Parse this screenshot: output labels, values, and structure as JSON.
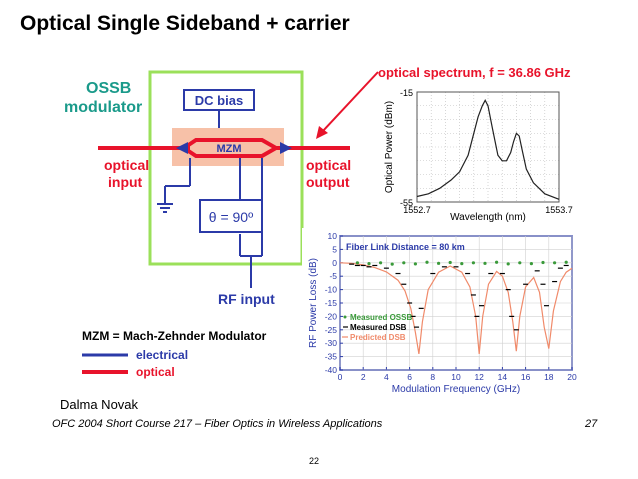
{
  "slide": {
    "title": "Optical Single Sideband + carrier",
    "author": "Dalma Novak",
    "footer": "OFC 2004 Short Course 217 – Fiber Optics in Wireless Applications",
    "footer_page": "27",
    "page_number": "22"
  },
  "diagram": {
    "ossb_line1": "OSSB",
    "ossb_line2": "modulator",
    "dc_bias": "DC bias",
    "mzm": "MZM",
    "phase": "θ = 90º",
    "optical_input_1": "optical",
    "optical_input_2": "input",
    "optical_output_1": "optical",
    "optical_output_2": "output",
    "rf_input": "RF input",
    "spectrum_caption": "optical spectrum, f = 36.86 GHz"
  },
  "legend": {
    "mzm_def": "MZM = Mach-Zehnder Modulator",
    "electrical": "electrical",
    "optical": "optical"
  },
  "colors": {
    "red": "#e8132b",
    "blue": "#2b3aa8",
    "green_box": "#9be05a",
    "mzm_fill": "#f7c1a8",
    "predicted": "#f08a6a",
    "measured_ossb": "#3a9a3a"
  },
  "chart_data": [
    {
      "type": "line",
      "ylabel": "Optical Power (dBm)",
      "xlabel": "Wavelength (nm)",
      "xticks": [
        "1552.7",
        "1553.7"
      ],
      "yticks": [
        "-15",
        "-55"
      ],
      "xlim": [
        1552.7,
        1553.7
      ],
      "ylim": [
        -55,
        -15
      ],
      "x": [
        1552.7,
        1552.78,
        1552.86,
        1552.94,
        1553.0,
        1553.06,
        1553.1,
        1553.13,
        1553.16,
        1553.18,
        1553.2,
        1553.23,
        1553.27,
        1553.3,
        1553.33,
        1553.36,
        1553.38,
        1553.4,
        1553.42,
        1553.44,
        1553.47,
        1553.52,
        1553.6,
        1553.7
      ],
      "y": [
        -53,
        -52,
        -50,
        -47,
        -44,
        -38,
        -30,
        -24,
        -20,
        -18,
        -20,
        -28,
        -38,
        -40,
        -40,
        -37,
        -33,
        -30,
        -31,
        -36,
        -43,
        -48,
        -52,
        -54
      ]
    },
    {
      "type": "scatter",
      "annotation": "Fiber Link Distance = 80 km",
      "ylabel": "RF Power Loss (dB)",
      "xlabel": "Modulation Frequency (GHz)",
      "xlim": [
        0,
        20
      ],
      "ylim": [
        -40,
        10
      ],
      "xticks": [
        "0",
        "2",
        "4",
        "6",
        "8",
        "10",
        "12",
        "14",
        "16",
        "18",
        "20"
      ],
      "yticks": [
        "10",
        "5",
        "0",
        "-5",
        "-10",
        "-15",
        "-20",
        "-25",
        "-30",
        "-35",
        "-40"
      ],
      "legend_position": "bottom-left",
      "series": [
        {
          "name": "Measured OSSB",
          "x": [
            1.5,
            2.5,
            3.5,
            4.5,
            5.5,
            6.5,
            7.5,
            8.5,
            9.5,
            10.5,
            11.5,
            12.5,
            13.5,
            14.5,
            15.5,
            16.5,
            17.5,
            18.5,
            19.5
          ],
          "values": [
            0,
            -0.3,
            0,
            -0.5,
            0,
            -0.4,
            0.2,
            -0.2,
            0.1,
            -0.3,
            0,
            -0.2,
            0.2,
            -0.4,
            0,
            -0.3,
            0.1,
            0,
            0.2
          ]
        },
        {
          "name": "Measured DSB",
          "x": [
            1,
            1.5,
            2,
            2.5,
            3,
            4,
            5,
            5.5,
            6,
            6.3,
            6.6,
            7,
            8,
            9,
            10,
            11,
            11.5,
            11.8,
            12.2,
            13,
            14,
            14.5,
            14.8,
            15.2,
            16,
            17,
            17.5,
            17.8,
            18.5,
            19,
            19.5
          ],
          "values": [
            -0.5,
            -1,
            -1,
            -1.5,
            -1,
            -2,
            -4,
            -8,
            -15,
            -20,
            -24,
            -17,
            -4,
            -1.5,
            -1.5,
            -4,
            -12,
            -20,
            -16,
            -4,
            -4,
            -10,
            -20,
            -25,
            -8,
            -3,
            -8,
            -16,
            -7,
            -2,
            -1
          ]
        },
        {
          "name": "Predicted DSB",
          "x": [
            0,
            1,
            2,
            3,
            4,
            5,
            5.6,
            6.1,
            6.5,
            6.8,
            7.1,
            7.6,
            8.5,
            9.5,
            10.5,
            11.2,
            11.7,
            12.0,
            12.3,
            12.8,
            13.5,
            14.0,
            14.5,
            14.9,
            15.2,
            15.5,
            16.0,
            16.7,
            17.2,
            17.6,
            18.0,
            18.4,
            19.0,
            19.5,
            20.0
          ],
          "values": [
            0,
            -0.2,
            -0.8,
            -1.8,
            -3.4,
            -6.5,
            -10.5,
            -17,
            -26,
            -34,
            -22,
            -10,
            -3.5,
            -1.2,
            -3.5,
            -9,
            -20,
            -34,
            -20,
            -8,
            -3.2,
            -5,
            -11,
            -22,
            -33,
            -20,
            -9,
            -5.5,
            -11,
            -24,
            -32,
            -18,
            -7,
            -3.5,
            -2
          ]
        }
      ]
    }
  ]
}
